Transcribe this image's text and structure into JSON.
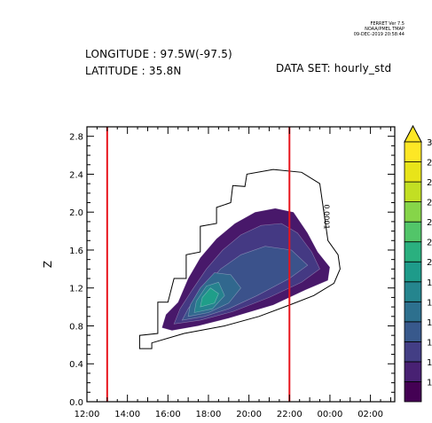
{
  "header": {
    "stamp_line1": "FERRET Ver 7.5",
    "stamp_line2": "NOAA/PMEL TMAP",
    "stamp_line3": "09-DEC-2019 20:58:44",
    "longitude": "LONGITUDE : 97.5W(-97.5)",
    "latitude": "LATITUDE : 35.8N",
    "dataset": "DATA SET: hourly_std"
  },
  "chart_data": {
    "type": "heatmap",
    "title": "",
    "xlabel": "",
    "ylabel": "Z",
    "x_unit": "hours",
    "xlim": [
      12,
      27.2
    ],
    "ylim": [
      0,
      2.9
    ],
    "x_ticks": [
      12,
      14,
      16,
      18,
      20,
      22,
      24,
      26
    ],
    "x_tick_labels": [
      "12:00",
      "14:00",
      "16:00",
      "18:00",
      "20:00",
      "22:00",
      "00:00",
      "02:00"
    ],
    "y_ticks": [
      0.0,
      0.4,
      0.8,
      1.2,
      1.6,
      2.0,
      2.4,
      2.8
    ],
    "y_tick_labels": [
      "0.0",
      "0.4",
      "0.8",
      "1.2",
      "1.6",
      "2.0",
      "2.4",
      "2.8"
    ],
    "vertical_lines": [
      {
        "x": 13,
        "color": "#e8141c"
      },
      {
        "x": 22,
        "color": "#e8141c"
      }
    ],
    "outer_contour_label": "0.0001",
    "outer_contour": [
      [
        14.6,
        0.56
      ],
      [
        15.2,
        0.56
      ],
      [
        15.2,
        0.62
      ],
      [
        16.8,
        0.72
      ],
      [
        18.8,
        0.8
      ],
      [
        20.5,
        0.9
      ],
      [
        22.0,
        1.02
      ],
      [
        23.2,
        1.12
      ],
      [
        24.2,
        1.25
      ],
      [
        24.5,
        1.4
      ],
      [
        24.4,
        1.55
      ],
      [
        23.9,
        1.7
      ],
      [
        23.7,
        2.0
      ],
      [
        23.5,
        2.3
      ],
      [
        22.6,
        2.42
      ],
      [
        21.2,
        2.45
      ],
      [
        19.9,
        2.4
      ],
      [
        19.8,
        2.27
      ],
      [
        19.2,
        2.28
      ],
      [
        19.1,
        2.1
      ],
      [
        18.4,
        2.05
      ],
      [
        18.4,
        1.88
      ],
      [
        17.6,
        1.85
      ],
      [
        17.6,
        1.58
      ],
      [
        16.9,
        1.55
      ],
      [
        16.9,
        1.3
      ],
      [
        16.3,
        1.3
      ],
      [
        16.0,
        1.05
      ],
      [
        15.5,
        1.05
      ],
      [
        15.5,
        0.72
      ],
      [
        14.6,
        0.7
      ]
    ],
    "filled_regions": [
      {
        "level": 0.5,
        "color": "#48186a",
        "points": [
          [
            15.7,
            0.78
          ],
          [
            16.2,
            0.75
          ],
          [
            17.5,
            0.8
          ],
          [
            19.0,
            0.88
          ],
          [
            21.2,
            1.02
          ],
          [
            22.8,
            1.18
          ],
          [
            23.9,
            1.28
          ],
          [
            24.0,
            1.42
          ],
          [
            23.4,
            1.58
          ],
          [
            22.9,
            1.78
          ],
          [
            22.2,
            2.0
          ],
          [
            21.3,
            2.04
          ],
          [
            20.3,
            2.0
          ],
          [
            19.3,
            1.88
          ],
          [
            18.4,
            1.72
          ],
          [
            17.6,
            1.52
          ],
          [
            17.0,
            1.3
          ],
          [
            16.5,
            1.05
          ],
          [
            15.9,
            0.92
          ]
        ]
      },
      {
        "level": 1.0,
        "color": "#443983",
        "points": [
          [
            16.3,
            0.82
          ],
          [
            17.6,
            0.86
          ],
          [
            19.2,
            0.95
          ],
          [
            21.0,
            1.1
          ],
          [
            22.6,
            1.26
          ],
          [
            23.5,
            1.4
          ],
          [
            23.1,
            1.58
          ],
          [
            22.4,
            1.78
          ],
          [
            21.6,
            1.88
          ],
          [
            20.6,
            1.86
          ],
          [
            19.6,
            1.76
          ],
          [
            18.7,
            1.6
          ],
          [
            17.9,
            1.4
          ],
          [
            17.2,
            1.18
          ],
          [
            16.6,
            0.98
          ]
        ]
      },
      {
        "level": 1.5,
        "color": "#3b528b",
        "points": [
          [
            16.7,
            0.86
          ],
          [
            17.8,
            0.9
          ],
          [
            19.0,
            0.98
          ],
          [
            20.4,
            1.12
          ],
          [
            22.0,
            1.3
          ],
          [
            22.9,
            1.44
          ],
          [
            22.1,
            1.6
          ],
          [
            20.8,
            1.64
          ],
          [
            19.6,
            1.55
          ],
          [
            18.6,
            1.4
          ],
          [
            17.7,
            1.18
          ],
          [
            17.0,
            0.98
          ]
        ]
      },
      {
        "level": 2.0,
        "color": "#31688e",
        "points": [
          [
            17.0,
            0.9
          ],
          [
            18.0,
            0.94
          ],
          [
            19.0,
            1.04
          ],
          [
            19.6,
            1.2
          ],
          [
            19.1,
            1.34
          ],
          [
            18.3,
            1.36
          ],
          [
            17.6,
            1.2
          ],
          [
            17.1,
            1.02
          ]
        ]
      },
      {
        "level": 2.5,
        "color": "#26828e",
        "points": [
          [
            17.3,
            0.94
          ],
          [
            18.2,
            0.98
          ],
          [
            18.8,
            1.12
          ],
          [
            18.5,
            1.26
          ],
          [
            17.9,
            1.22
          ],
          [
            17.4,
            1.06
          ]
        ]
      },
      {
        "level": 3.0,
        "color": "#1f9e89",
        "points": [
          [
            17.6,
            1.0
          ],
          [
            18.3,
            1.04
          ],
          [
            18.5,
            1.14
          ],
          [
            18.1,
            1.2
          ],
          [
            17.7,
            1.1
          ]
        ]
      }
    ],
    "colorbar": {
      "colors": [
        "#440154",
        "#482173",
        "#433e85",
        "#38598c",
        "#2d708e",
        "#25858e",
        "#1e9b8a",
        "#2ab07f",
        "#52c569",
        "#86d549",
        "#c2df23",
        "#e8e419",
        "#fde725"
      ],
      "labels": [
        "1",
        "1",
        "1",
        "1",
        "1",
        "1",
        "2",
        "2",
        "2",
        "2",
        "2",
        "2",
        "3"
      ],
      "triangle_color": "#fde725"
    }
  }
}
